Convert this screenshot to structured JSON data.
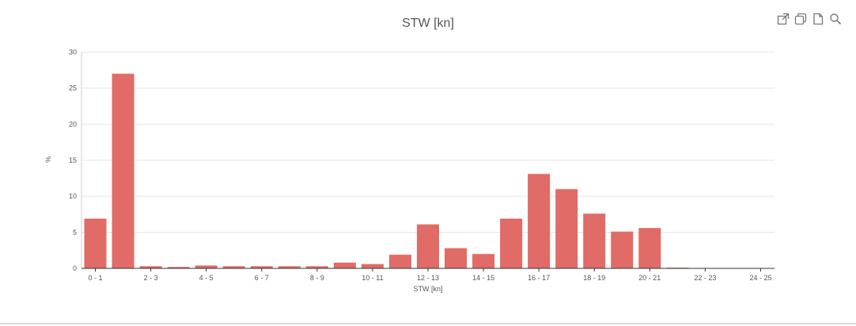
{
  "toolbar": {
    "icons": [
      "external-link-icon",
      "copy-icon",
      "document-icon",
      "search-icon"
    ]
  },
  "colors": {
    "bar": "#e06b67",
    "grid": "#e6e6e6",
    "axis": "#333333",
    "text": "#555555"
  },
  "chart_data": {
    "type": "bar",
    "title": "STW [kn]",
    "xlabel": "STW [kn]",
    "ylabel": "%",
    "ylim": [
      0,
      30
    ],
    "yticks": [
      0,
      5,
      10,
      15,
      20,
      25,
      30
    ],
    "grid": true,
    "legend": "none",
    "categories": [
      "0 - 1",
      "1 - 2",
      "2 - 3",
      "3 - 4",
      "4 - 5",
      "5 - 6",
      "6 - 7",
      "7 - 8",
      "8 - 9",
      "9 - 10",
      "10 - 11",
      "11 - 12",
      "12 - 13",
      "13 - 14",
      "14 - 15",
      "15 - 16",
      "16 - 17",
      "17 - 18",
      "18 - 19",
      "19 - 20",
      "20 - 21",
      "21 - 22",
      "22 - 23",
      "23 - 24",
      "24 - 25"
    ],
    "shown_tick_labels": [
      "0 - 1",
      "2 - 3",
      "4 - 5",
      "6 - 7",
      "8 - 9",
      "10 - 11",
      "12 - 13",
      "14 - 15",
      "16 - 17",
      "18 - 19",
      "20 - 21",
      "22 - 23",
      "24 - 25"
    ],
    "values": [
      6.9,
      27.0,
      0.3,
      0.2,
      0.4,
      0.3,
      0.3,
      0.3,
      0.3,
      0.8,
      0.6,
      1.9,
      6.1,
      2.8,
      2.0,
      6.9,
      13.1,
      11.0,
      7.6,
      5.1,
      5.6,
      0.1,
      0,
      0,
      0
    ]
  }
}
